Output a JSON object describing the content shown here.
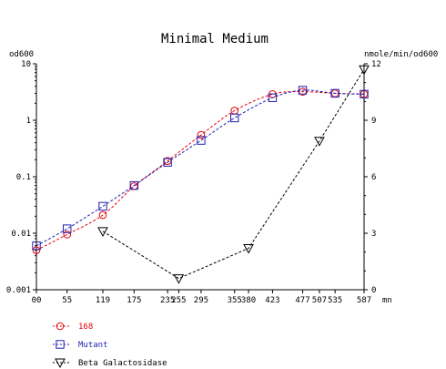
{
  "chart_data": {
    "type": "line",
    "title": "Minimal Medium",
    "y_left_label": "od600",
    "y_right_label": "nmole/min/od600",
    "x_unit_label": "mn",
    "x_tick_labels": [
      "00",
      "55",
      "119",
      "175",
      "235",
      "255",
      "295",
      "355",
      "380",
      "423",
      "477",
      "507",
      "535",
      "587"
    ],
    "x_ticks": [
      0,
      55,
      119,
      175,
      235,
      255,
      295,
      355,
      380,
      423,
      477,
      507,
      535,
      587
    ],
    "xlim": [
      0,
      587
    ],
    "y_left_scale": "log",
    "y_left_ticks": [
      0.001,
      0.01,
      0.1,
      1,
      10
    ],
    "y_left_tick_labels": [
      "0.001",
      "0.01",
      "0.1",
      "1",
      "10"
    ],
    "ylim_left": [
      0.001,
      10
    ],
    "y_right_ticks": [
      0,
      3,
      6,
      9,
      12
    ],
    "y_right_tick_labels": [
      "0",
      "3",
      "6",
      "9",
      "12"
    ],
    "ylim_right": [
      0,
      12
    ],
    "legend_position": "bottom-left",
    "grid": false,
    "series": [
      {
        "name": "168",
        "axis": "left",
        "color": "#e8000b",
        "marker": "circle",
        "x": [
          0,
          55,
          119,
          175,
          235,
          295,
          355,
          423,
          477,
          535,
          587
        ],
        "values": [
          0.005,
          0.0095,
          0.021,
          0.068,
          0.19,
          0.55,
          1.48,
          2.9,
          3.2,
          3.0,
          2.9
        ]
      },
      {
        "name": "Mutant",
        "axis": "left",
        "color": "#1f1fb4",
        "marker": "square",
        "x": [
          0,
          55,
          119,
          175,
          235,
          295,
          355,
          423,
          477,
          535,
          587
        ],
        "values": [
          0.006,
          0.012,
          0.03,
          0.07,
          0.18,
          0.44,
          1.1,
          2.5,
          3.4,
          3.0,
          2.9
        ]
      },
      {
        "name": "Beta Galactosidase",
        "axis": "right",
        "color": "#000000",
        "marker": "triangle-down",
        "x": [
          119,
          255,
          380,
          507,
          587
        ],
        "values": [
          3.1,
          0.6,
          2.2,
          7.9,
          11.7
        ]
      }
    ]
  }
}
